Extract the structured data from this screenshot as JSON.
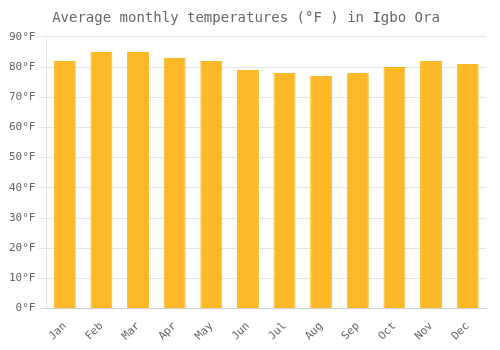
{
  "chart_data": {
    "type": "bar",
    "title": "Average monthly temperatures (°F ) in Igbo Ora",
    "categories": [
      "Jan",
      "Feb",
      "Mar",
      "Apr",
      "May",
      "Jun",
      "Jul",
      "Aug",
      "Sep",
      "Oct",
      "Nov",
      "Dec"
    ],
    "values": [
      82,
      85,
      85,
      83,
      82,
      79,
      78,
      77,
      78,
      80,
      82,
      81
    ],
    "color": "#FDB827",
    "ylim": [
      0,
      90
    ],
    "yticks": [
      {
        "value": 0,
        "label": "0°F"
      },
      {
        "value": 10,
        "label": "10°F"
      },
      {
        "value": 20,
        "label": "20°F"
      },
      {
        "value": 30,
        "label": "30°F"
      },
      {
        "value": 40,
        "label": "40°F"
      },
      {
        "value": 50,
        "label": "50°F"
      },
      {
        "value": 60,
        "label": "60°F"
      },
      {
        "value": 70,
        "label": "70°F"
      },
      {
        "value": 80,
        "label": "80°F"
      },
      {
        "value": 90,
        "label": "90°F"
      }
    ],
    "grid": true
  }
}
